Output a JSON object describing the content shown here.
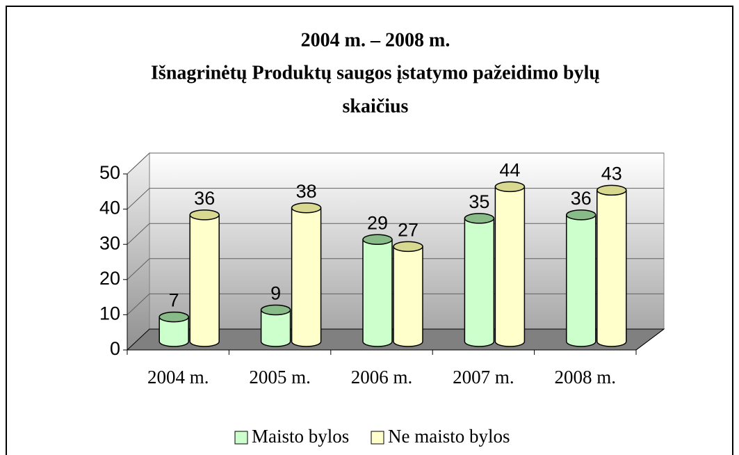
{
  "chart_data": {
    "type": "bar3d",
    "title": [
      "2004 m. – 2008 m.",
      "Išnagrinėtų Produktų saugos įstatymo pažeidimo bylų",
      "skaičius"
    ],
    "categories": [
      "2004 m.",
      "2005 m.",
      "2006 m.",
      "2007 m.",
      "2008 m."
    ],
    "series": [
      {
        "name": "Maisto bylos",
        "color": "#ccffcc",
        "top_color": "#88bb88",
        "values": [
          7,
          9,
          29,
          35,
          36
        ]
      },
      {
        "name": "Ne maisto bylos",
        "color": "#ffffcc",
        "top_color": "#d8d890",
        "values": [
          36,
          38,
          27,
          44,
          43
        ]
      }
    ],
    "ylim": [
      0,
      50
    ],
    "yticks": [
      0,
      10,
      20,
      30,
      40,
      50
    ],
    "grid": true,
    "legend": "bottom"
  }
}
